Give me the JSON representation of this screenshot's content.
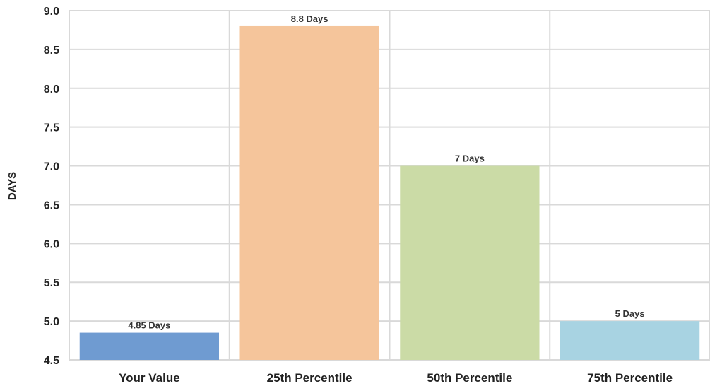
{
  "chart_data": {
    "type": "bar",
    "categories": [
      "Your Value",
      "25th Percentile",
      "50th Percentile",
      "75th Percentile"
    ],
    "values": [
      4.85,
      8.8,
      7.0,
      5.0
    ],
    "data_labels": [
      "4.85 Days",
      "8.8 Days",
      "7 Days",
      "5 Days"
    ],
    "colors": [
      "#6f9bd1",
      "#f5c59b",
      "#cbdba6",
      "#a8d3e2"
    ],
    "ylabel": "DAYS",
    "ylim": [
      4.5,
      9.0
    ],
    "yticks": [
      "4.5",
      "5.0",
      "5.5",
      "6.0",
      "6.5",
      "7.0",
      "7.5",
      "8.0",
      "8.5",
      "9.0"
    ],
    "grid": true,
    "legend": "none"
  }
}
